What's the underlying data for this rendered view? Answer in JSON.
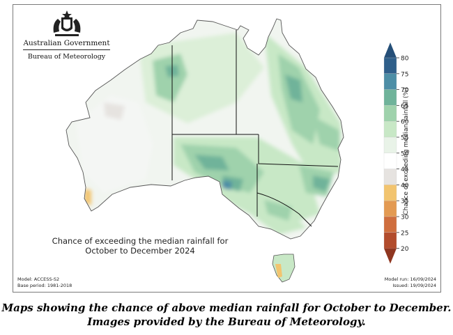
{
  "logo": {
    "government": "Australian Government",
    "agency": "Bureau of Meteorology",
    "crest_icon": "commonwealth-coat-of-arms-icon"
  },
  "map": {
    "title_line1": "Chance of exceeding the median rainfall for",
    "title_line2": "October to December 2024",
    "model": "Model: ACCESS-S2",
    "base_period": "Base period: 1981-2018",
    "model_run": "Model run: 16/09/2024",
    "issued": "Issued: 19/09/2024"
  },
  "legend": {
    "title": "Chance of exceeding median rainfall (%)",
    "ticks": [
      "80",
      "75",
      "70",
      "65",
      "60",
      "55",
      "50",
      "45",
      "40",
      "35",
      "30",
      "25",
      "20"
    ],
    "colors": [
      "#2f5f8a",
      "#4d8ea6",
      "#6fb39a",
      "#9fd2ac",
      "#c8e8c6",
      "#e9f3e8",
      "#ffffff",
      "#e6e3e0",
      "#f2c46f",
      "#e39a52",
      "#cf6e3e",
      "#b24c2c"
    ]
  },
  "caption": "Maps showing the chance of above median rainfall for October to December. Images provided by the Bureau of Meteorology."
}
